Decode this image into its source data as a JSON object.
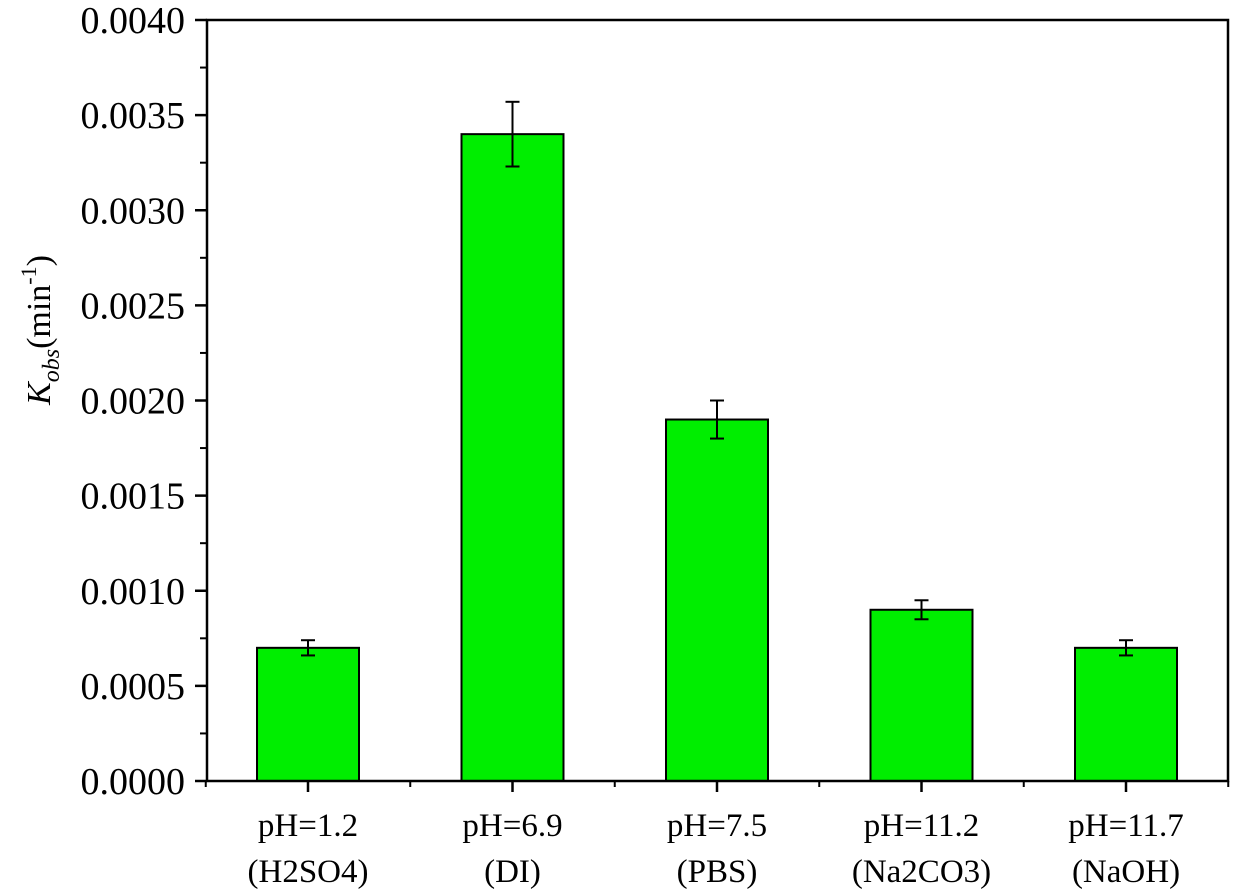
{
  "chart_data": {
    "type": "bar",
    "categories": [
      {
        "line1": "pH=1.2",
        "line2": "(H2SO4)"
      },
      {
        "line1": "pH=6.9",
        "line2": "(DI)"
      },
      {
        "line1": "pH=7.5",
        "line2": "(PBS)"
      },
      {
        "line1": "pH=11.2",
        "line2": "(Na2CO3)"
      },
      {
        "line1": "pH=11.7",
        "line2": "(NaOH)"
      }
    ],
    "values": [
      0.0007,
      0.0034,
      0.0019,
      0.0009,
      0.0007
    ],
    "errors": [
      4e-05,
      0.00017,
      0.0001,
      5e-05,
      4e-05
    ],
    "ylim": [
      0,
      0.004
    ],
    "yticks": [
      "0.0000",
      "0.0005",
      "0.0010",
      "0.0015",
      "0.0020",
      "0.0025",
      "0.0030",
      "0.0035",
      "0.0040"
    ],
    "ylabel": {
      "main": "K",
      "subscript": "obs",
      "unit": "(min",
      "superscript": "-1",
      "close": ")"
    },
    "xlabel": "",
    "title": "",
    "bar_color": "#00ee00",
    "grid": false,
    "legend": "none"
  }
}
